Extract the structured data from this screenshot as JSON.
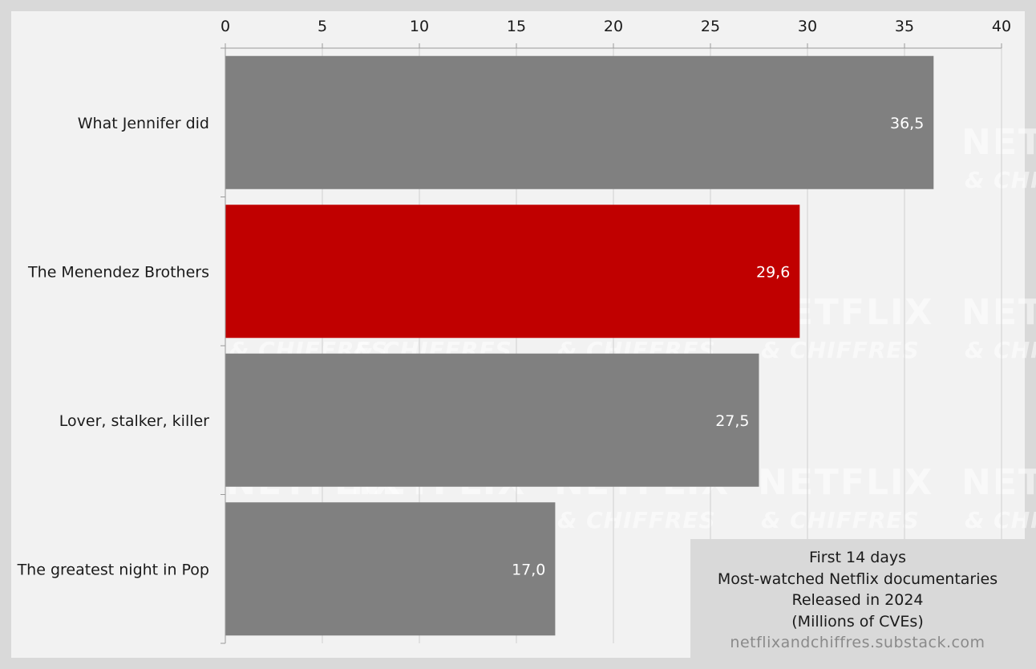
{
  "chart_data": {
    "type": "bar",
    "orientation": "horizontal",
    "categories": [
      "What Jennifer did",
      "The Menendez Brothers",
      "Lover, stalker, killer",
      "The greatest night in Pop"
    ],
    "values": [
      36.5,
      29.6,
      27.5,
      17.0
    ],
    "value_labels": [
      "36,5",
      "29,6",
      "27,5",
      "17,0"
    ],
    "xlim": [
      0,
      40
    ],
    "x_ticks": [
      "0",
      "5",
      "10",
      "15",
      "20",
      "25",
      "30",
      "35",
      "40"
    ],
    "x_axis_position": "top",
    "grid": true,
    "highlight_index": 1,
    "colors": {
      "bar": "#808080",
      "highlight": "#c00000",
      "grid": "#d0d0d0",
      "background": "#f2f2f2"
    }
  },
  "info_box": {
    "line1": "First 14 days",
    "line2": "Most-watched Netflix documentaries",
    "line3": "Released in 2024",
    "line4": "(Millions of CVEs)",
    "source": "netflixandchiffres.substack.com"
  },
  "watermark": {
    "big": "NETFLIX",
    "small": "& CHIFFRES"
  }
}
